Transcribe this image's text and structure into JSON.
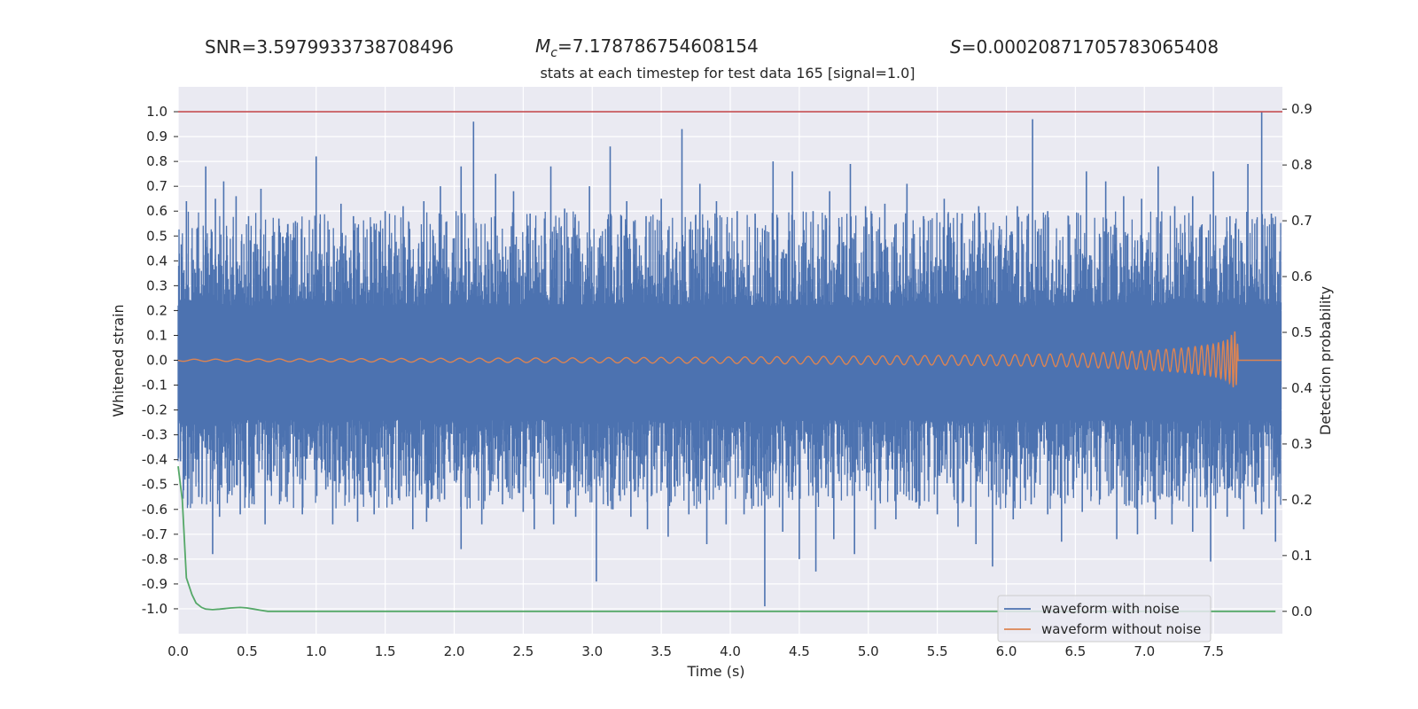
{
  "header": {
    "snr_label": "SNR",
    "snr_value": "3.5979933738708496",
    "mc_symbol": "M",
    "mc_subscript": "c",
    "mc_value": "7.178786754608154",
    "s_symbol": "S",
    "s_value": "0.00020871705783065408"
  },
  "chart_data": {
    "type": "line",
    "title": "stats at each timestep for test data 165 [signal=1.0]",
    "xlabel": "Time (s)",
    "ylabel": "Whitened strain",
    "y2label": "Detection probability",
    "xlim": [
      0.0,
      8.0
    ],
    "ylim": [
      -1.1,
      1.1
    ],
    "y2lim": [
      -0.04,
      0.94
    ],
    "grid": true,
    "legend_position": "lower-right",
    "x_ticks": [
      "0.0",
      "0.5",
      "1.0",
      "1.5",
      "2.0",
      "2.5",
      "3.0",
      "3.5",
      "4.0",
      "4.5",
      "5.0",
      "5.5",
      "6.0",
      "6.5",
      "7.0",
      "7.5"
    ],
    "y_ticks": [
      "1.0",
      "0.9",
      "0.8",
      "0.7",
      "0.6",
      "0.5",
      "0.4",
      "0.3",
      "0.2",
      "0.1",
      "0.0",
      "-0.1",
      "-0.2",
      "-0.3",
      "-0.4",
      "-0.5",
      "-0.6",
      "-0.7",
      "-0.8",
      "-0.9",
      "-1.0"
    ],
    "y2_ticks": [
      "0.9",
      "0.8",
      "0.7",
      "0.6",
      "0.5",
      "0.4",
      "0.3",
      "0.2",
      "0.1",
      "0.0"
    ],
    "colors": {
      "background": "#EAEAF2",
      "noise": "#4C72B0",
      "signal": "#DD8452",
      "probability": "#55A868",
      "threshold": "#C44E52"
    },
    "series": [
      {
        "name": "waveform with noise",
        "color": "#4C72B0",
        "peaks_x": [
          0.06,
          0.2,
          0.27,
          0.33,
          0.42,
          0.51,
          0.6,
          0.73,
          0.85,
          1.0,
          1.18,
          1.27,
          1.42,
          1.5,
          1.63,
          1.78,
          1.9,
          2.05,
          2.14,
          2.3,
          2.43,
          2.55,
          2.7,
          2.8,
          2.98,
          3.13,
          3.25,
          3.39,
          3.5,
          3.65,
          3.78,
          3.9,
          4.05,
          4.18,
          4.31,
          4.45,
          4.6,
          4.72,
          4.87,
          4.98,
          5.12,
          5.28,
          5.4,
          5.55,
          5.68,
          5.8,
          5.95,
          6.08,
          6.19,
          6.3,
          6.45,
          6.58,
          6.72,
          6.85,
          6.98,
          7.1,
          7.22,
          7.35,
          7.5,
          7.62,
          7.75,
          7.85,
          7.92
        ],
        "peaks_y": [
          0.64,
          0.78,
          0.65,
          0.72,
          0.66,
          0.58,
          0.69,
          0.57,
          0.56,
          0.82,
          0.63,
          0.58,
          0.55,
          0.6,
          0.62,
          0.64,
          0.7,
          0.78,
          0.96,
          0.75,
          0.68,
          0.59,
          0.78,
          0.61,
          0.7,
          0.86,
          0.64,
          0.58,
          0.65,
          0.93,
          0.71,
          0.64,
          0.6,
          0.59,
          0.8,
          0.76,
          0.6,
          0.68,
          0.79,
          0.62,
          0.63,
          0.71,
          0.58,
          0.65,
          0.59,
          0.62,
          0.54,
          0.62,
          0.97,
          0.6,
          0.58,
          0.76,
          0.72,
          0.66,
          0.65,
          0.78,
          0.62,
          0.66,
          0.76,
          0.58,
          0.79,
          1.0,
          0.59
        ],
        "troughs_x": [
          0.04,
          0.15,
          0.25,
          0.3,
          0.45,
          0.55,
          0.63,
          0.78,
          0.9,
          1.07,
          1.12,
          1.3,
          1.42,
          1.55,
          1.7,
          1.8,
          1.93,
          2.05,
          2.2,
          2.35,
          2.5,
          2.58,
          2.72,
          2.88,
          3.03,
          3.15,
          3.28,
          3.4,
          3.55,
          3.7,
          3.83,
          3.97,
          4.1,
          4.25,
          4.38,
          4.5,
          4.62,
          4.75,
          4.9,
          5.05,
          5.2,
          5.35,
          5.5,
          5.65,
          5.78,
          5.9,
          6.05,
          6.18,
          6.3,
          6.4,
          6.55,
          6.68,
          6.8,
          6.95,
          7.08,
          7.2,
          7.35,
          7.48,
          7.6,
          7.72,
          7.85,
          7.95
        ],
        "troughs_y": [
          -0.47,
          -0.55,
          -0.78,
          -0.63,
          -0.62,
          -0.58,
          -0.66,
          -0.55,
          -0.62,
          -0.52,
          -0.66,
          -0.65,
          -0.62,
          -0.58,
          -0.68,
          -0.65,
          -0.56,
          -0.76,
          -0.66,
          -0.58,
          -0.61,
          -0.68,
          -0.66,
          -0.63,
          -0.89,
          -0.6,
          -0.63,
          -0.68,
          -0.71,
          -0.62,
          -0.74,
          -0.66,
          -0.62,
          -0.99,
          -0.69,
          -0.8,
          -0.85,
          -0.72,
          -0.78,
          -0.68,
          -0.64,
          -0.57,
          -0.62,
          -0.67,
          -0.74,
          -0.83,
          -0.64,
          -0.58,
          -0.62,
          -0.73,
          -0.61,
          -0.56,
          -0.72,
          -0.7,
          -0.64,
          -0.66,
          -0.69,
          -0.81,
          -0.63,
          -0.68,
          -0.62,
          -0.73
        ]
      },
      {
        "name": "waveform without noise",
        "color": "#DD8452",
        "envelope_x": [
          0.0,
          1.0,
          2.0,
          3.0,
          4.0,
          5.0,
          6.0,
          6.5,
          7.0,
          7.3,
          7.5,
          7.6,
          7.66,
          7.68,
          7.7,
          8.0
        ],
        "envelope_y": [
          0.004,
          0.006,
          0.008,
          0.01,
          0.013,
          0.017,
          0.022,
          0.027,
          0.038,
          0.05,
          0.065,
          0.08,
          0.12,
          0.05,
          0.001,
          0.0
        ]
      },
      {
        "name": "detection probability",
        "axis": "right",
        "color": "#55A868",
        "x": [
          0.0,
          0.03,
          0.06,
          0.1,
          0.13,
          0.17,
          0.2,
          0.25,
          0.3,
          0.38,
          0.45,
          0.5,
          0.55,
          0.6,
          0.65,
          0.75,
          1.0,
          2.0,
          3.0,
          4.0,
          5.0,
          6.0,
          7.0,
          7.95
        ],
        "y": [
          0.26,
          0.2,
          0.06,
          0.03,
          0.015,
          0.007,
          0.004,
          0.003,
          0.004,
          0.006,
          0.007,
          0.006,
          0.004,
          0.002,
          0.0,
          0.0,
          0.0,
          0.0,
          0.0,
          0.0,
          0.0,
          0.0,
          0.0,
          0.0
        ]
      }
    ],
    "threshold": {
      "axis": "left",
      "y": 1.0,
      "color": "#C44E52"
    },
    "legend": [
      "waveform with noise",
      "waveform without noise"
    ]
  }
}
